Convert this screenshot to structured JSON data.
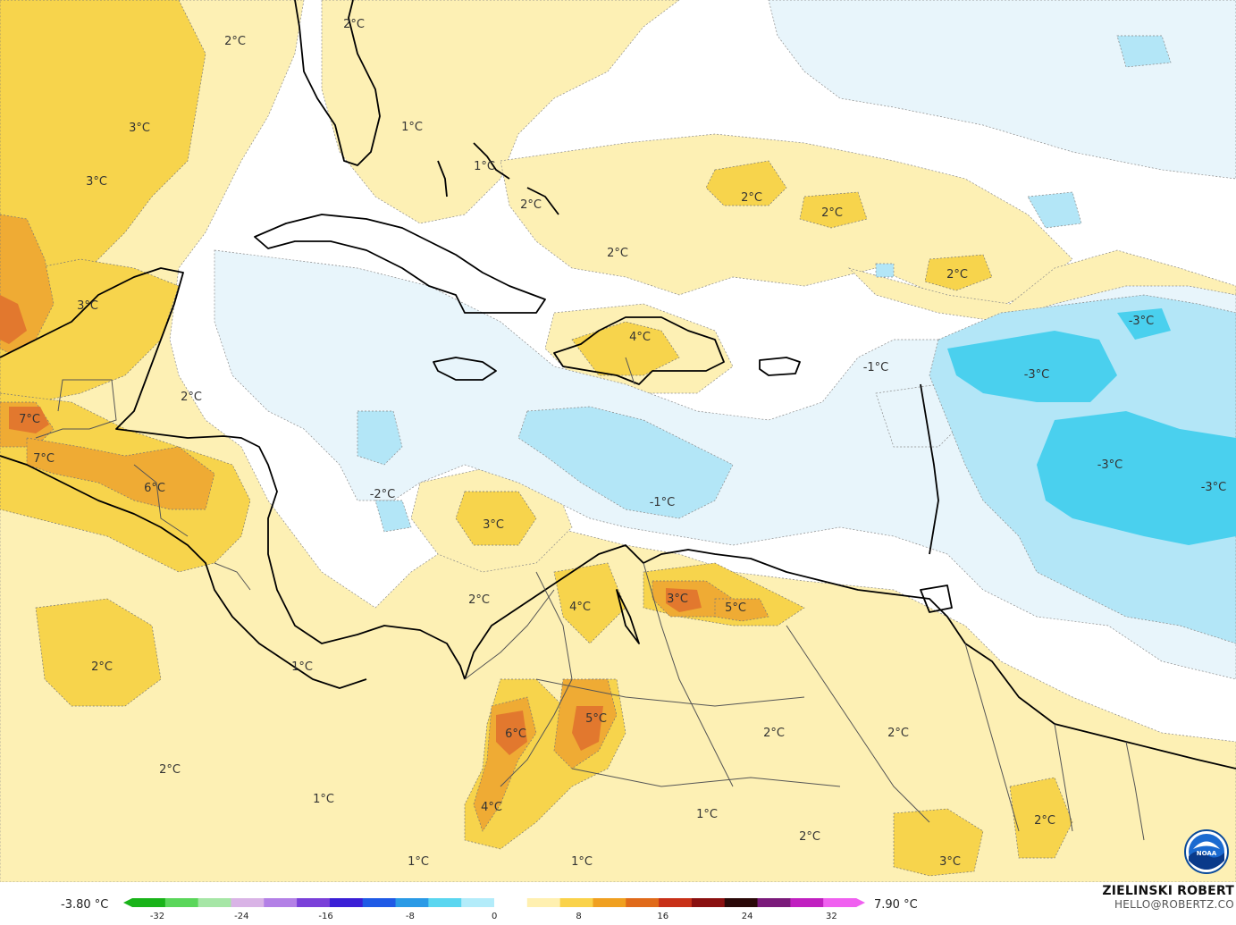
{
  "map": {
    "labels": [
      {
        "text": "2°C"
      },
      {
        "text": "2°C"
      },
      {
        "text": "3°C"
      },
      {
        "text": "3°C"
      },
      {
        "text": "1°C"
      },
      {
        "text": "1°C"
      },
      {
        "text": "2°C"
      },
      {
        "text": "2°C"
      },
      {
        "text": "2°C"
      },
      {
        "text": "2°C"
      },
      {
        "text": "2°C"
      },
      {
        "text": "3°C"
      },
      {
        "text": "4°C"
      },
      {
        "text": "-3°C"
      },
      {
        "text": "-3°C"
      },
      {
        "text": "-1°C"
      },
      {
        "text": "2°C"
      },
      {
        "text": "7°C"
      },
      {
        "text": "7°C"
      },
      {
        "text": "6°C"
      },
      {
        "text": "-2°C"
      },
      {
        "text": "3°C"
      },
      {
        "text": "-1°C"
      },
      {
        "text": "-3°C"
      },
      {
        "text": "-3°C"
      },
      {
        "text": "4°C"
      },
      {
        "text": "3°C"
      },
      {
        "text": "5°C"
      },
      {
        "text": "2°C"
      },
      {
        "text": "2°C"
      },
      {
        "text": "1°C"
      },
      {
        "text": "5°C"
      },
      {
        "text": "6°C"
      },
      {
        "text": "2°C"
      },
      {
        "text": "2°C"
      },
      {
        "text": "2°C"
      },
      {
        "text": "1°C"
      },
      {
        "text": "4°C"
      },
      {
        "text": "1°C"
      },
      {
        "text": "1°C"
      },
      {
        "text": "1°C"
      },
      {
        "text": "2°C"
      },
      {
        "text": "2°C"
      },
      {
        "text": "3°C"
      }
    ]
  },
  "legend": {
    "min_label": "-3.80 °C",
    "max_label": "7.90 °C",
    "ticks": [
      "-32",
      "-24",
      "-16",
      "-8",
      "0",
      "8",
      "16",
      "24",
      "32"
    ],
    "colors": [
      "#19b319",
      "#5ad65a",
      "#a6e6a6",
      "#d9b3e6",
      "#b380e6",
      "#7a40d9",
      "#3a1fd6",
      "#1f5ae6",
      "#2a9ae6",
      "#5ad6f0",
      "#b3ecfa",
      "#ffffff",
      "#fff0b0",
      "#fad24a",
      "#f0a020",
      "#e06a1a",
      "#c83018",
      "#8a1010",
      "#2a0808",
      "#7a1a7a",
      "#c020c0",
      "#f060f0"
    ]
  },
  "author": {
    "name": "ZIELINSKI ROBERT",
    "email": "HELLO@ROBERTZ.CO"
  },
  "logo": {
    "text": "NOAA"
  },
  "palette": {
    "ocean_white": "#ffffff",
    "warm_light": "#fdf0b4",
    "warm_mid": "#f7d44c",
    "warm_strong": "#efab34",
    "warm_hot": "#e2782e",
    "cool_light": "#e8f5fb",
    "cool_mid": "#b3e6f7",
    "cool_strong": "#4ad0ee",
    "coast": "#000000",
    "border": "#555555"
  }
}
